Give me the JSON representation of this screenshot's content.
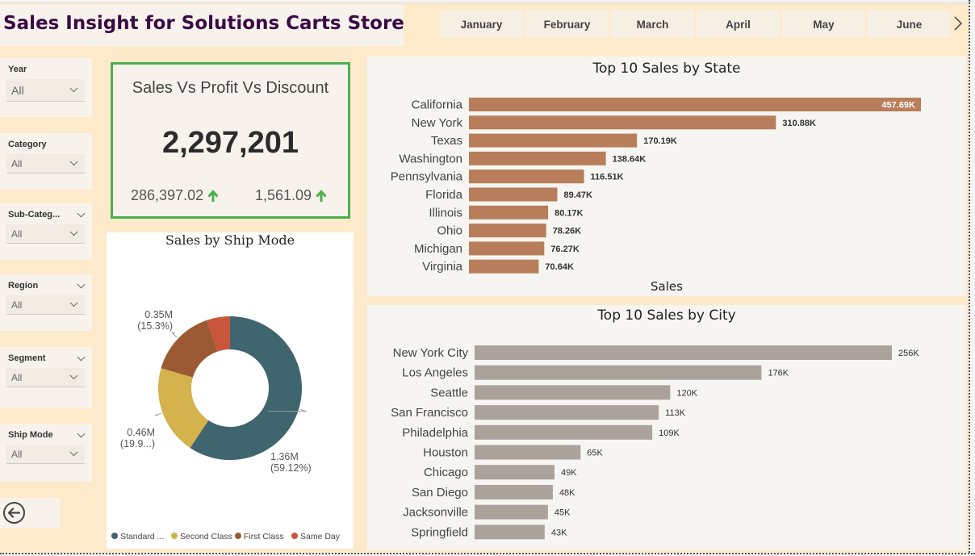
{
  "header": {
    "title": "Sales Insight for Solutions Carts Store"
  },
  "months": [
    "January",
    "February",
    "March",
    "April",
    "May",
    "June"
  ],
  "months_next_label": "›",
  "slicers": [
    {
      "label": "Year",
      "value": "All"
    },
    {
      "label": "Category",
      "value": "All"
    },
    {
      "label": "Sub-Categ...",
      "value": "All"
    },
    {
      "label": "Region",
      "value": "All"
    },
    {
      "label": "Segment",
      "value": "All"
    },
    {
      "label": "Ship Mode",
      "value": "All"
    }
  ],
  "kpi": {
    "title": "Sales Vs Profit Vs Discount",
    "main_value": "2,297,201",
    "profit_value": "286,397.02",
    "discount_value": "1,561.09",
    "trend_color": "#4caf50"
  },
  "colors": {
    "state_bar": "#b87d5a",
    "city_bar": "#aba29b",
    "kpi_border": "#4caf50",
    "title": "#3b0a45"
  },
  "icons": {
    "back": "back-arrow-icon",
    "next": "chevron-right-icon",
    "trend": "arrow-up-icon"
  },
  "chart_data": [
    {
      "type": "pie",
      "title": "Sales by Ship Mode",
      "donut": true,
      "categories": [
        "Standard ...",
        "Second Class",
        "First Class",
        "Same Day"
      ],
      "values": [
        1.36,
        0.46,
        0.35,
        0.12
      ],
      "colors": [
        "#3f656e",
        "#d4b24c",
        "#9b5a33",
        "#c9553a"
      ],
      "data_labels": [
        {
          "line1": "1.36M",
          "line2": "(59.12%)"
        },
        {
          "line1": "0.46M",
          "line2": "(19.9...)"
        },
        {
          "line1": "0.35M",
          "line2": "(15.3%)"
        }
      ],
      "legend": "bottom"
    },
    {
      "type": "bar",
      "orientation": "horizontal",
      "title": "Top 10 Sales by State",
      "xlabel": "Sales",
      "categories": [
        "California",
        "New York",
        "Texas",
        "Washington",
        "Pennsylvania",
        "Florida",
        "Illinois",
        "Ohio",
        "Michigan",
        "Virginia"
      ],
      "values": [
        457.69,
        310.88,
        170.19,
        138.64,
        116.51,
        89.47,
        80.17,
        78.26,
        76.27,
        70.64
      ],
      "labels": [
        "457.69K",
        "310.88K",
        "170.19K",
        "138.64K",
        "116.51K",
        "89.47K",
        "80.17K",
        "78.26K",
        "76.27K",
        "70.64K"
      ]
    },
    {
      "type": "bar",
      "orientation": "horizontal",
      "title": "Top 10 Sales by City",
      "categories": [
        "New York City",
        "Los Angeles",
        "Seattle",
        "San Francisco",
        "Philadelphia",
        "Houston",
        "Chicago",
        "San Diego",
        "Jacksonville",
        "Springfield"
      ],
      "values": [
        256,
        176,
        120,
        113,
        109,
        65,
        49,
        48,
        45,
        43
      ],
      "labels": [
        "256K",
        "176K",
        "120K",
        "113K",
        "109K",
        "65K",
        "49K",
        "48K",
        "45K",
        "43K"
      ]
    }
  ]
}
